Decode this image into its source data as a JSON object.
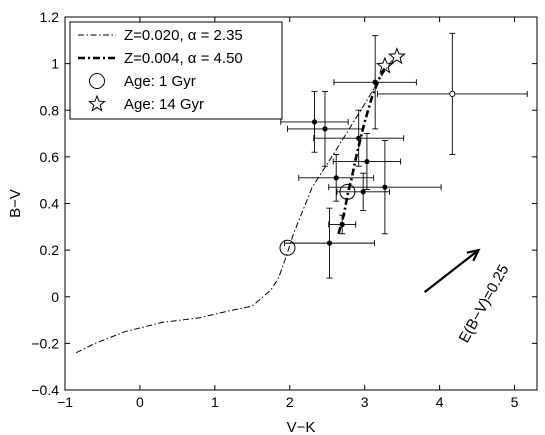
{
  "chart_data": {
    "type": "scatter",
    "title": "",
    "xlabel": "V−K",
    "ylabel": "B−V",
    "xlim": [
      -1,
      5.3
    ],
    "ylim": [
      -0.4,
      1.2
    ],
    "xticks": [
      -1,
      0,
      1,
      2,
      3,
      4,
      5
    ],
    "yticks": [
      -0.4,
      -0.2,
      0,
      0.2,
      0.4,
      0.6,
      0.8,
      1.0,
      1.2
    ],
    "xtick_labels": [
      "−1",
      "0",
      "1",
      "2",
      "3",
      "4",
      "5"
    ],
    "ytick_labels": [
      "−0.4",
      "−0.2",
      "0",
      "0.2",
      "0.4",
      "0.6",
      "0.8",
      "1",
      "1.2"
    ],
    "grid": false,
    "legend_position": "top-left",
    "legend": [
      {
        "label": "Z=0.020, α = 2.35",
        "style": "dash-dot-thin"
      },
      {
        "label": "Z=0.004, α = 4.50",
        "style": "dash-dot-thick"
      },
      {
        "label": "Age: 1 Gyr",
        "style": "circle"
      },
      {
        "label": "Age: 14 Gyr",
        "style": "star"
      }
    ],
    "series": [
      {
        "name": "Z=0.020, α = 2.35",
        "kind": "line",
        "points": [
          [
            -0.85,
            -0.24
          ],
          [
            -0.6,
            -0.2
          ],
          [
            -0.2,
            -0.15
          ],
          [
            0.3,
            -0.11
          ],
          [
            0.8,
            -0.09
          ],
          [
            1.2,
            -0.06
          ],
          [
            1.5,
            -0.04
          ],
          [
            1.75,
            0.03
          ],
          [
            1.85,
            0.08
          ],
          [
            1.95,
            0.17
          ],
          [
            2.05,
            0.27
          ],
          [
            2.3,
            0.47
          ],
          [
            2.6,
            0.62
          ],
          [
            2.95,
            0.8
          ],
          [
            3.25,
            0.96
          ],
          [
            3.4,
            1.03
          ]
        ]
      },
      {
        "name": "Z=0.004, α = 4.50",
        "kind": "line",
        "points": [
          [
            2.65,
            0.27
          ],
          [
            2.72,
            0.35
          ],
          [
            2.78,
            0.45
          ],
          [
            2.82,
            0.5
          ],
          [
            2.9,
            0.62
          ],
          [
            3.0,
            0.75
          ],
          [
            3.1,
            0.86
          ],
          [
            3.2,
            0.94
          ],
          [
            3.28,
            0.99
          ]
        ]
      },
      {
        "name": "Age: 1 Gyr",
        "kind": "marker",
        "marker": "circle",
        "points": [
          [
            1.97,
            0.21
          ],
          [
            2.77,
            0.45
          ]
        ]
      },
      {
        "name": "Age: 14 Gyr",
        "kind": "marker",
        "marker": "star",
        "points": [
          [
            3.27,
            0.99
          ],
          [
            3.43,
            1.03
          ]
        ]
      },
      {
        "name": "",
        "kind": "errorbar",
        "marker": "filled",
        "points": [
          {
            "x": 2.33,
            "y": 0.75,
            "xerr": 0.45,
            "yerr": 0.13
          },
          {
            "x": 2.47,
            "y": 0.72,
            "xerr": 0.5,
            "yerr": 0.16
          },
          {
            "x": 2.53,
            "y": 0.23,
            "xerr": 0.6,
            "yerr": 0.15
          },
          {
            "x": 2.7,
            "y": 0.31,
            "xerr": 0.18,
            "yerr": 0.04
          },
          {
            "x": 2.62,
            "y": 0.51,
            "xerr": 0.5,
            "yerr": 0.1
          },
          {
            "x": 2.92,
            "y": 0.68,
            "xerr": 0.6,
            "yerr": 0.12
          },
          {
            "x": 3.03,
            "y": 0.58,
            "xerr": 0.45,
            "yerr": 0.12
          },
          {
            "x": 3.14,
            "y": 0.92,
            "xerr": 0.55,
            "yerr": 0.2
          },
          {
            "x": 3.27,
            "y": 0.47,
            "xerr": 0.75,
            "yerr": 0.2
          },
          {
            "x": 2.98,
            "y": 0.45,
            "xerr": 0.35,
            "yerr": 0.08
          }
        ]
      },
      {
        "name": "",
        "kind": "errorbar",
        "marker": "open",
        "points": [
          {
            "x": 4.17,
            "y": 0.87,
            "xerr": 1.0,
            "yerr": 0.26
          }
        ]
      }
    ],
    "annotations": [
      {
        "text": "E(B−V)=0.25",
        "type": "reddening-vector",
        "from": [
          3.8,
          0.02
        ],
        "to": [
          4.52,
          0.2
        ]
      }
    ]
  }
}
